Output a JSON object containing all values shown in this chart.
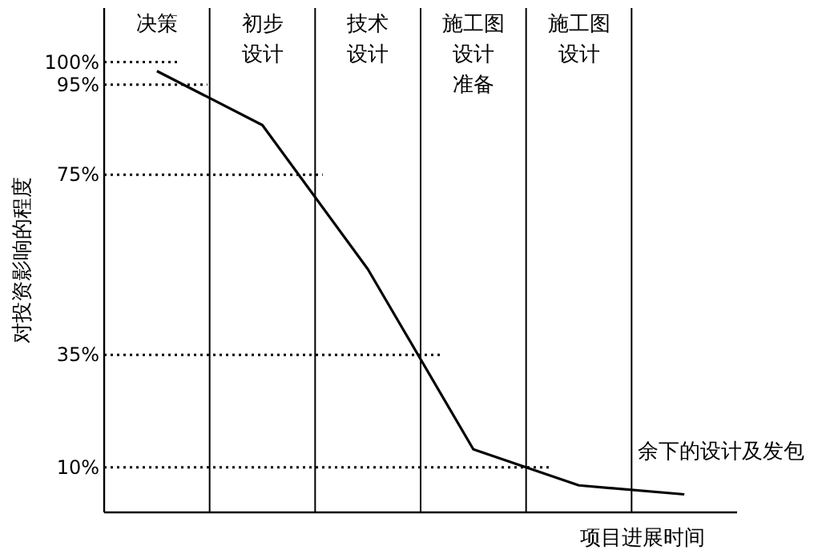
{
  "chart_data": {
    "type": "line",
    "xlabel": "项目进展时间",
    "ylabel": "对投资影响的程度",
    "categories": [
      "决策",
      "初步设计",
      "技术设计",
      "施工图设计准备",
      "施工图设计",
      "余下的设计及发包"
    ],
    "ylim": [
      0,
      112
    ],
    "yticks": [
      {
        "value": 100,
        "label": "100%"
      },
      {
        "value": 95,
        "label": "95%"
      },
      {
        "value": 75,
        "label": "75%"
      },
      {
        "value": 35,
        "label": "35%"
      },
      {
        "value": 10,
        "label": "10%"
      }
    ],
    "series": [
      {
        "color": "#000000",
        "values": [
          98,
          86,
          54,
          14,
          6,
          4
        ]
      }
    ],
    "ref_lines": [
      {
        "axis": "y",
        "value": 100,
        "line_style": "dotted"
      },
      {
        "axis": "y",
        "value": 95,
        "line_style": "dotted"
      },
      {
        "axis": "y",
        "value": 75,
        "line_style": "dotted"
      },
      {
        "axis": "y",
        "value": 35,
        "line_style": "dotted"
      },
      {
        "axis": "y",
        "value": 10,
        "line_style": "dotted"
      }
    ]
  }
}
